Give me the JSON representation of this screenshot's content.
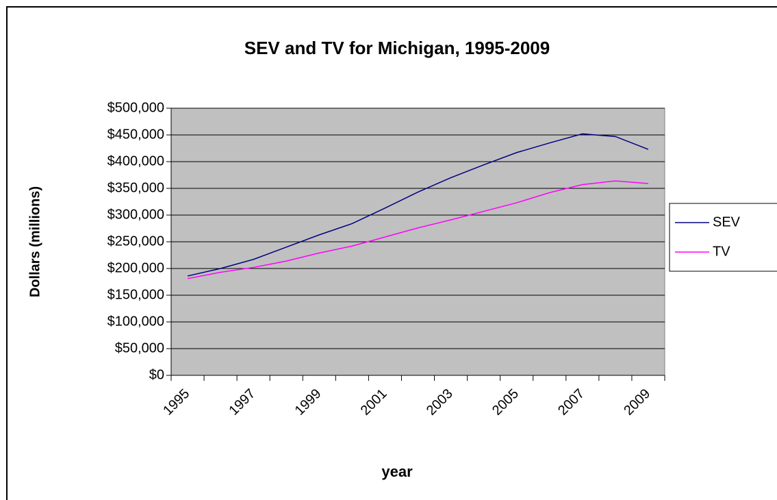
{
  "chart_data": {
    "type": "line",
    "title": "SEV and TV for Michigan, 1995-2009",
    "x_label": "year",
    "y_label": "Dollars (millions)",
    "categories": [
      "1995",
      null,
      "1997",
      null,
      "1999",
      null,
      "2001",
      null,
      "2003",
      null,
      "2005",
      null,
      "2007",
      null,
      "2009"
    ],
    "series": [
      {
        "name": "SEV",
        "color": "#000080",
        "values": [
          186000,
          200000,
          217000,
          240000,
          263000,
          284000,
          313000,
          343000,
          370000,
          394000,
          417000,
          435000,
          452000,
          447000,
          423000
        ]
      },
      {
        "name": "TV",
        "color": "#ff00ff",
        "values": [
          181000,
          193000,
          202000,
          214000,
          229000,
          242000,
          259000,
          276000,
          291000,
          307000,
          323000,
          342000,
          357000,
          364000,
          359000
        ]
      }
    ],
    "ylim": [
      0,
      500000
    ],
    "yticks": [
      {
        "value": 0,
        "label": "$0"
      },
      {
        "value": 50000,
        "label": "$50,000"
      },
      {
        "value": 100000,
        "label": "$100,000"
      },
      {
        "value": 150000,
        "label": "$150,000"
      },
      {
        "value": 200000,
        "label": "$200,000"
      },
      {
        "value": 250000,
        "label": "$250,000"
      },
      {
        "value": 300000,
        "label": "$300,000"
      },
      {
        "value": 350000,
        "label": "$350,000"
      },
      {
        "value": 400000,
        "label": "$400,000"
      },
      {
        "value": 450000,
        "label": "$450,000"
      },
      {
        "value": 500000,
        "label": "$500,000"
      }
    ],
    "grid": true,
    "legend": "right",
    "plot_background": "#c0c0c0"
  }
}
